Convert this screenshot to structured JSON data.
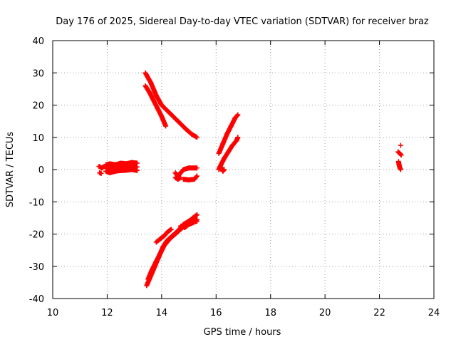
{
  "chart_data": {
    "type": "scatter",
    "title": "Day 176 of 2025, Sidereal Day-to-day VTEC variation (SDTVAR) for receiver braz",
    "xlabel": "GPS time / hours",
    "ylabel": "SDTVAR / TECUs",
    "xlim": [
      10,
      24
    ],
    "ylim": [
      -40,
      40
    ],
    "xticks": [
      "10",
      "12",
      "14",
      "16",
      "18",
      "20",
      "22",
      "24"
    ],
    "yticks": [
      "40",
      "30",
      "20",
      "10",
      "0",
      "-10",
      "-20",
      "-30",
      "-40"
    ],
    "grid": true,
    "marker": "+",
    "color": "#ff0000",
    "series": [
      {
        "segments": [
          {
            "x": [
              11.7,
              11.8,
              11.9
            ],
            "y": [
              1.0,
              0.5,
              1.0
            ]
          },
          {
            "x": [
              11.72,
              11.78
            ],
            "y": [
              -1.0,
              -1.2
            ]
          },
          {
            "x": [
              11.95,
              12.1,
              12.3,
              12.5,
              12.7,
              12.9,
              13.1
            ],
            "y": [
              1.5,
              1.8,
              1.5,
              2.0,
              1.8,
              2.2,
              2.0
            ]
          },
          {
            "x": [
              11.95,
              12.1,
              12.3,
              12.5,
              12.7,
              12.9,
              13.1
            ],
            "y": [
              0.5,
              0.2,
              0.8,
              0.5,
              1.0,
              0.6,
              0.8
            ]
          },
          {
            "x": [
              11.95,
              12.1,
              12.3,
              12.5,
              12.7,
              12.9,
              13.1
            ],
            "y": [
              -0.5,
              -1.0,
              -0.5,
              -0.3,
              -0.2,
              0.0,
              -0.3
            ]
          },
          {
            "x": [
              13.4,
              13.6,
              13.8,
              14.0,
              14.3,
              14.6,
              14.9,
              15.1,
              15.3
            ],
            "y": [
              30.0,
              27.0,
              23.0,
              20.0,
              17.5,
              15.0,
              12.5,
              11.0,
              10.0
            ]
          },
          {
            "x": [
              13.4,
              13.55,
              13.7,
              13.85,
              14.0,
              14.15
            ],
            "y": [
              26.0,
              24.0,
              21.5,
              19.0,
              16.5,
              13.5
            ]
          },
          {
            "x": [
              14.5,
              14.6,
              14.7,
              14.8,
              15.0,
              15.2,
              15.3
            ],
            "y": [
              -1.0,
              -2.0,
              -1.0,
              0.0,
              0.5,
              0.5,
              0.5
            ]
          },
          {
            "x": [
              14.5,
              14.6,
              14.7
            ],
            "y": [
              -2.5,
              -3.0,
              -2.5
            ]
          },
          {
            "x": [
              14.8,
              15.0,
              15.2,
              15.3
            ],
            "y": [
              -3.0,
              -3.2,
              -3.0,
              -2.0
            ]
          },
          {
            "x": [
              13.45,
              13.6,
              13.75,
              13.9,
              14.05,
              14.2,
              14.4,
              14.6,
              14.8,
              15.0,
              15.15,
              15.3
            ],
            "y": [
              -36.0,
              -33.0,
              -30.0,
              -27.0,
              -24.0,
              -22.0,
              -20.5,
              -19.0,
              -17.0,
              -16.0,
              -15.0,
              -14.0
            ]
          },
          {
            "x": [
              13.5,
              13.65,
              13.8,
              13.95,
              14.1,
              14.3,
              14.5,
              14.7,
              14.9,
              15.1,
              15.3
            ],
            "y": [
              -34.0,
              -31.0,
              -28.5,
              -26.0,
              -23.5,
              -21.5,
              -20.0,
              -18.5,
              -17.0,
              -16.5,
              -16.0
            ]
          },
          {
            "x": [
              13.8,
              13.95,
              14.1,
              14.2,
              14.35
            ],
            "y": [
              -22.5,
              -21.5,
              -20.5,
              -19.5,
              -18.5
            ]
          },
          {
            "x": [
              14.7,
              14.85,
              15.0,
              15.15,
              15.3
            ],
            "y": [
              -17.5,
              -18.0,
              -17.0,
              -16.5,
              -15.5
            ]
          },
          {
            "x": [
              16.1,
              16.25,
              16.4,
              16.55,
              16.7,
              16.8
            ],
            "y": [
              5.0,
              8.0,
              11.0,
              13.5,
              16.0,
              17.0
            ]
          },
          {
            "x": [
              16.15,
              16.3,
              16.45,
              16.6,
              16.75,
              16.8
            ],
            "y": [
              1.0,
              3.5,
              5.5,
              7.5,
              9.0,
              10.0
            ]
          },
          {
            "x": [
              16.1,
              16.15,
              16.2,
              16.25,
              16.3
            ],
            "y": [
              0.0,
              1.0,
              0.5,
              -0.5,
              0.0
            ]
          },
          {
            "x": [
              22.78
            ],
            "y": [
              7.5
            ]
          },
          {
            "x": [
              22.68,
              22.75,
              22.8
            ],
            "y": [
              5.5,
              5.0,
              4.5
            ]
          },
          {
            "x": [
              22.7,
              22.72,
              22.75,
              22.78
            ],
            "y": [
              2.5,
              1.5,
              0.5,
              0.0
            ]
          }
        ]
      }
    ]
  }
}
